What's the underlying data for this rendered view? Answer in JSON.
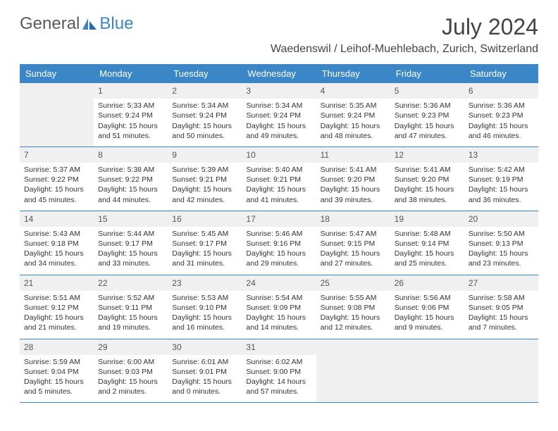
{
  "logo": {
    "text1": "General",
    "text2": "Blue"
  },
  "title": "July 2024",
  "location": "Waedenswil / Leihof-Muehlebach, Zurich, Switzerland",
  "colors": {
    "accent": "#3b86c6",
    "text": "#333333",
    "muted_bg": "#f0f0f0",
    "white": "#ffffff"
  },
  "day_labels": [
    "Sunday",
    "Monday",
    "Tuesday",
    "Wednesday",
    "Thursday",
    "Friday",
    "Saturday"
  ],
  "calendar": {
    "type": "table",
    "columns": 7,
    "weeks": [
      [
        null,
        {
          "n": "1",
          "sr": "5:33 AM",
          "ss": "9:24 PM",
          "dl": "15 hours and 51 minutes."
        },
        {
          "n": "2",
          "sr": "5:34 AM",
          "ss": "9:24 PM",
          "dl": "15 hours and 50 minutes."
        },
        {
          "n": "3",
          "sr": "5:34 AM",
          "ss": "9:24 PM",
          "dl": "15 hours and 49 minutes."
        },
        {
          "n": "4",
          "sr": "5:35 AM",
          "ss": "9:24 PM",
          "dl": "15 hours and 48 minutes."
        },
        {
          "n": "5",
          "sr": "5:36 AM",
          "ss": "9:23 PM",
          "dl": "15 hours and 47 minutes."
        },
        {
          "n": "6",
          "sr": "5:36 AM",
          "ss": "9:23 PM",
          "dl": "15 hours and 46 minutes."
        }
      ],
      [
        {
          "n": "7",
          "sr": "5:37 AM",
          "ss": "9:22 PM",
          "dl": "15 hours and 45 minutes."
        },
        {
          "n": "8",
          "sr": "5:38 AM",
          "ss": "9:22 PM",
          "dl": "15 hours and 44 minutes."
        },
        {
          "n": "9",
          "sr": "5:39 AM",
          "ss": "9:21 PM",
          "dl": "15 hours and 42 minutes."
        },
        {
          "n": "10",
          "sr": "5:40 AM",
          "ss": "9:21 PM",
          "dl": "15 hours and 41 minutes."
        },
        {
          "n": "11",
          "sr": "5:41 AM",
          "ss": "9:20 PM",
          "dl": "15 hours and 39 minutes."
        },
        {
          "n": "12",
          "sr": "5:41 AM",
          "ss": "9:20 PM",
          "dl": "15 hours and 38 minutes."
        },
        {
          "n": "13",
          "sr": "5:42 AM",
          "ss": "9:19 PM",
          "dl": "15 hours and 36 minutes."
        }
      ],
      [
        {
          "n": "14",
          "sr": "5:43 AM",
          "ss": "9:18 PM",
          "dl": "15 hours and 34 minutes."
        },
        {
          "n": "15",
          "sr": "5:44 AM",
          "ss": "9:17 PM",
          "dl": "15 hours and 33 minutes."
        },
        {
          "n": "16",
          "sr": "5:45 AM",
          "ss": "9:17 PM",
          "dl": "15 hours and 31 minutes."
        },
        {
          "n": "17",
          "sr": "5:46 AM",
          "ss": "9:16 PM",
          "dl": "15 hours and 29 minutes."
        },
        {
          "n": "18",
          "sr": "5:47 AM",
          "ss": "9:15 PM",
          "dl": "15 hours and 27 minutes."
        },
        {
          "n": "19",
          "sr": "5:48 AM",
          "ss": "9:14 PM",
          "dl": "15 hours and 25 minutes."
        },
        {
          "n": "20",
          "sr": "5:50 AM",
          "ss": "9:13 PM",
          "dl": "15 hours and 23 minutes."
        }
      ],
      [
        {
          "n": "21",
          "sr": "5:51 AM",
          "ss": "9:12 PM",
          "dl": "15 hours and 21 minutes."
        },
        {
          "n": "22",
          "sr": "5:52 AM",
          "ss": "9:11 PM",
          "dl": "15 hours and 19 minutes."
        },
        {
          "n": "23",
          "sr": "5:53 AM",
          "ss": "9:10 PM",
          "dl": "15 hours and 16 minutes."
        },
        {
          "n": "24",
          "sr": "5:54 AM",
          "ss": "9:09 PM",
          "dl": "15 hours and 14 minutes."
        },
        {
          "n": "25",
          "sr": "5:55 AM",
          "ss": "9:08 PM",
          "dl": "15 hours and 12 minutes."
        },
        {
          "n": "26",
          "sr": "5:56 AM",
          "ss": "9:06 PM",
          "dl": "15 hours and 9 minutes."
        },
        {
          "n": "27",
          "sr": "5:58 AM",
          "ss": "9:05 PM",
          "dl": "15 hours and 7 minutes."
        }
      ],
      [
        {
          "n": "28",
          "sr": "5:59 AM",
          "ss": "9:04 PM",
          "dl": "15 hours and 5 minutes."
        },
        {
          "n": "29",
          "sr": "6:00 AM",
          "ss": "9:03 PM",
          "dl": "15 hours and 2 minutes."
        },
        {
          "n": "30",
          "sr": "6:01 AM",
          "ss": "9:01 PM",
          "dl": "15 hours and 0 minutes."
        },
        {
          "n": "31",
          "sr": "6:02 AM",
          "ss": "9:00 PM",
          "dl": "14 hours and 57 minutes."
        },
        null,
        null,
        null
      ]
    ]
  },
  "labels": {
    "sunrise": "Sunrise:",
    "sunset": "Sunset:",
    "daylight": "Daylight:"
  }
}
